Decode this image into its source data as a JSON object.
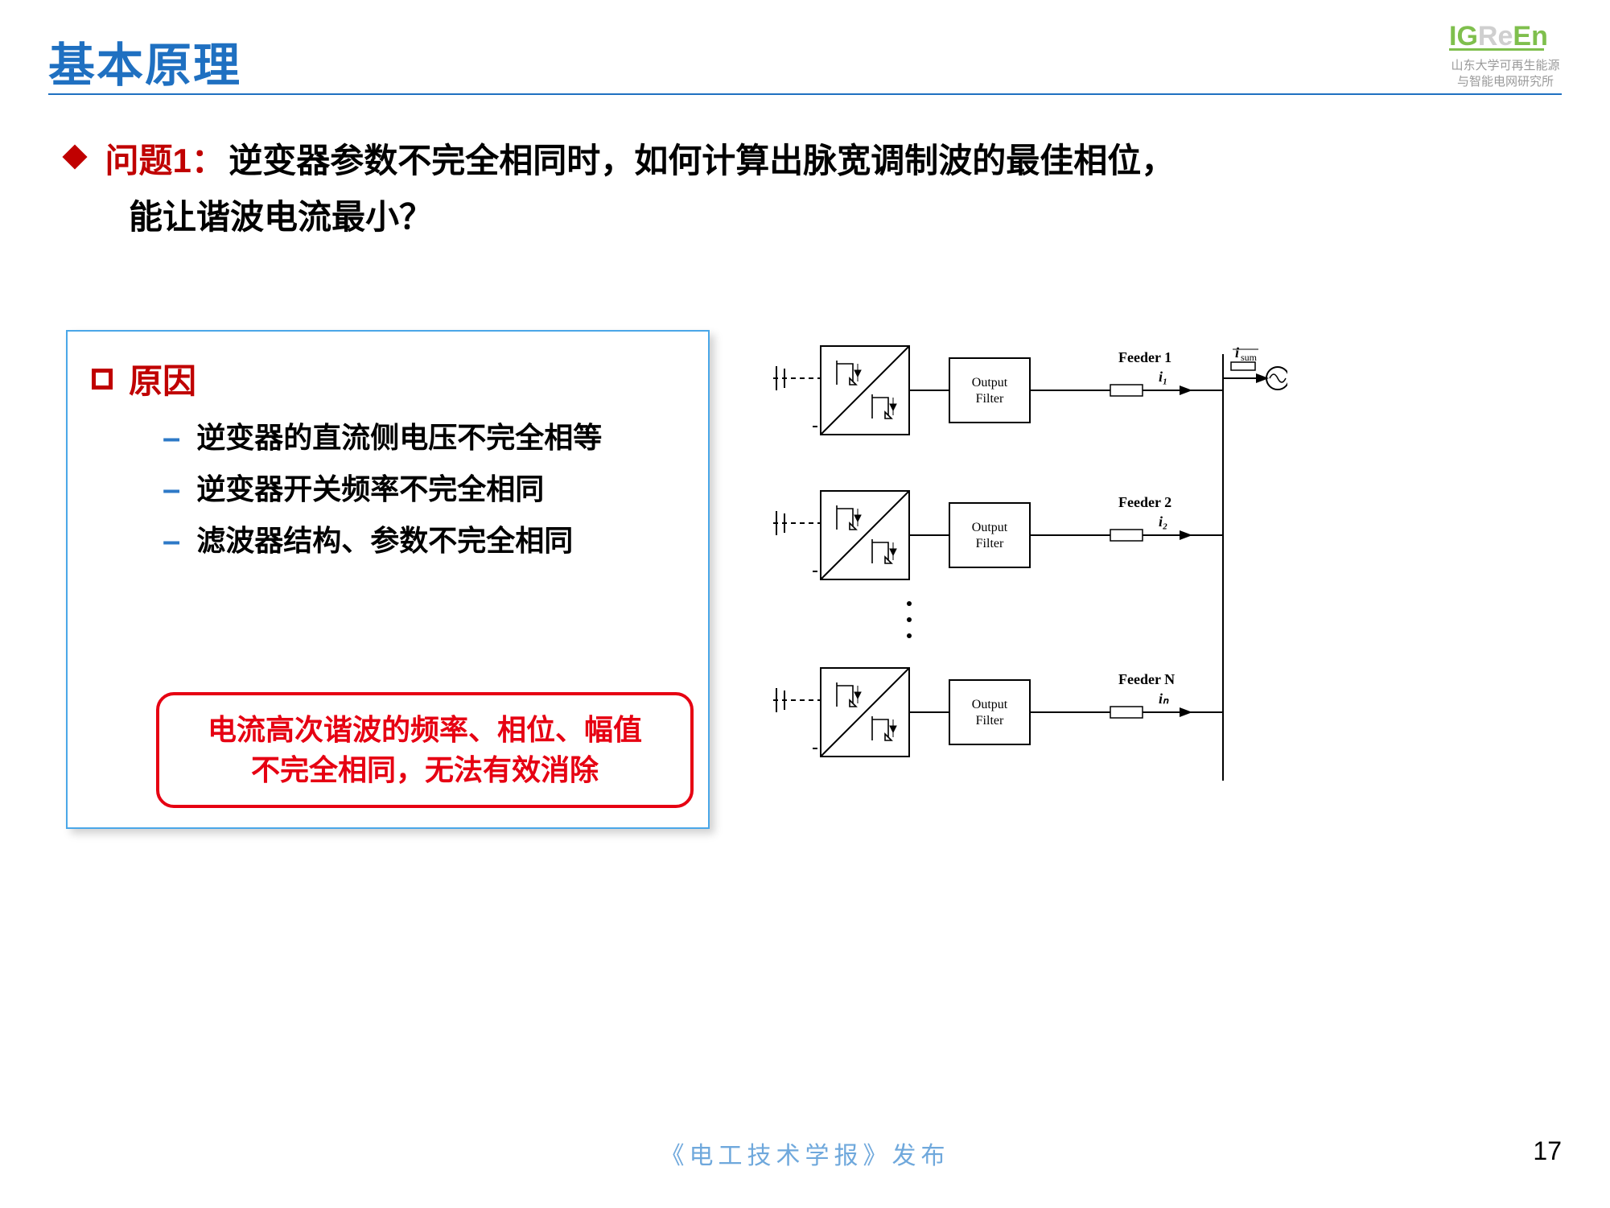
{
  "header": {
    "title": "基本原理",
    "logo_line1": "山东大学可再生能源",
    "logo_line2": "与智能电网研究所",
    "logo_mark": "IGReEn",
    "logo_colors": {
      "I": "#7fbf4d",
      "G": "#7fbf4d",
      "R": "#cfcfcf",
      "e": "#cfcfcf",
      "E": "#7fbf4d",
      "n": "#7fbf4d"
    }
  },
  "question": {
    "label": "问题1：",
    "line1_rest": "逆变器参数不完全相同时，如何计算出脉宽调制波的最佳相位，",
    "line2": "能让谐波电流最小？"
  },
  "reasons": {
    "title": "原因",
    "items": [
      "逆变器的直流侧电压不完全相等",
      "逆变器开关频率不完全相同",
      "滤波器结构、参数不完全相同"
    ]
  },
  "highlight": {
    "line1": "电流高次谐波的频率、相位、幅值",
    "line2": "不完全相同，无法有效消除"
  },
  "diagram": {
    "type": "block-diagram",
    "output_filter_label": "Output Filter",
    "feeders": [
      {
        "label": "Feeder 1",
        "current": "i₁"
      },
      {
        "label": "Feeder 2",
        "current": "i₂"
      },
      {
        "label": "Feeder N",
        "current": "iₙ"
      }
    ],
    "sum_label": "i_sum",
    "colors": {
      "stroke": "#000000",
      "fill": "#ffffff",
      "text": "#000000"
    },
    "line_width": 2,
    "font_family": "Times New Roman",
    "label_fontsize": 16,
    "feeder_fontsize": 18
  },
  "footer": {
    "text": "《电工技术学报》发布",
    "page": "17"
  }
}
